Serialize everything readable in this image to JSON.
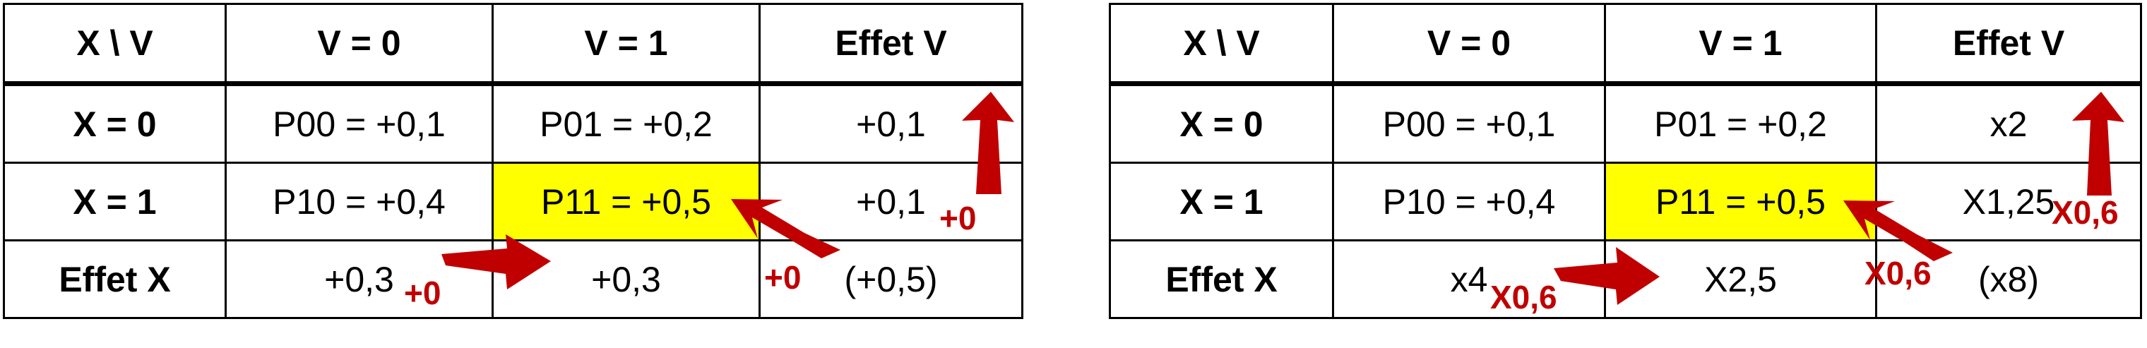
{
  "table_left": {
    "header": [
      "X \\ V",
      "V = 0",
      "V = 1",
      "Effet V"
    ],
    "rows": [
      {
        "label": "X = 0",
        "cells": [
          "P00 = +0,1",
          "P01 = +0,2",
          "+0,1"
        ]
      },
      {
        "label": "X = 1",
        "cells": [
          "P10 = +0,4",
          "P11 = +0,5",
          "+0,1"
        ]
      },
      {
        "label": "Effet X",
        "cells": [
          "+0,3",
          "+0,3",
          "(+0,5)"
        ]
      }
    ],
    "annotations": {
      "col_effect": "+0",
      "row_effect": "+0",
      "interaction": "+0"
    }
  },
  "table_right": {
    "header": [
      "X \\ V",
      "V = 0",
      "V = 1",
      "Effet V"
    ],
    "rows": [
      {
        "label": "X = 0",
        "cells": [
          "P00 = +0,1",
          "P01 = +0,2",
          "x2"
        ]
      },
      {
        "label": "X = 1",
        "cells": [
          "P10 = +0,4",
          "P11 = +0,5",
          "X1,25"
        ]
      },
      {
        "label": "Effet X",
        "cells": [
          "x4",
          "X2,5",
          "(x8)"
        ]
      }
    ],
    "annotations": {
      "col_effect": "X0,6",
      "row_effect": "X0,6",
      "interaction": "X0,6"
    }
  },
  "colors": {
    "highlight": "#ffff00",
    "arrow": "#c00000",
    "border": "#000000"
  },
  "icons": [
    "arrow-up-icon",
    "arrow-right-icon",
    "arrow-up-left-icon"
  ]
}
